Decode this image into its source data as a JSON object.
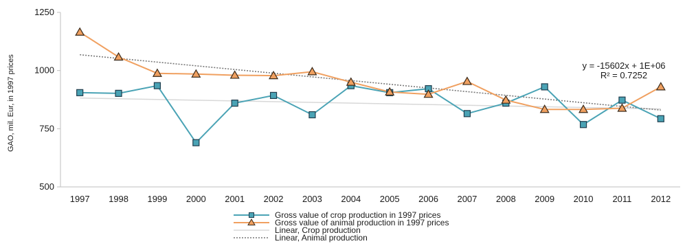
{
  "chart_data": {
    "type": "line",
    "ylabel": "GAO, mil. Eur, in 1997 prices",
    "ylim": [
      500,
      1250
    ],
    "yticks": [
      500,
      750,
      1000,
      1250
    ],
    "categories": [
      "1997",
      "1998",
      "1999",
      "2000",
      "2001",
      "2002",
      "2003",
      "2004",
      "2005",
      "2006",
      "2007",
      "2008",
      "2009",
      "2010",
      "2011",
      "2012"
    ],
    "series": [
      {
        "name": "Gross value of crop production in 1997 prices",
        "color": "#4aa3b5",
        "marker": "square",
        "values": [
          905,
          902,
          935,
          690,
          860,
          893,
          810,
          935,
          905,
          922,
          815,
          860,
          930,
          768,
          873,
          793
        ]
      },
      {
        "name": "Gross value of animal production in 1997 prices",
        "color": "#f0a060",
        "marker": "triangle",
        "values": [
          1165,
          1058,
          988,
          985,
          980,
          978,
          995,
          950,
          908,
          898,
          953,
          873,
          833,
          833,
          838,
          930
        ]
      }
    ],
    "trendlines": [
      {
        "name": "Linear, Crop production",
        "color": "#d8d8d8",
        "style": "solid",
        "start": 882,
        "end": 835
      },
      {
        "name": "Linear, Animal production",
        "color": "#777777",
        "style": "dotted",
        "start": 1068,
        "end": 830
      }
    ],
    "annotation": {
      "equation": "y = -15602x + 1E+06",
      "r2": "R² = 0.7252"
    },
    "grid": false,
    "legend_position": "bottom"
  }
}
